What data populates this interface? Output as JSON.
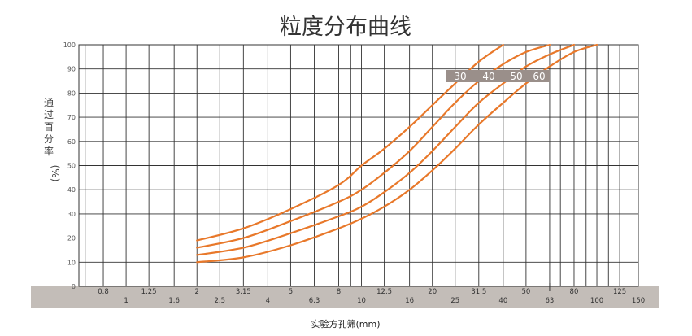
{
  "chart_data": {
    "type": "line",
    "title": "粒度分布曲线",
    "ylabel_chars": [
      "通",
      "过",
      "百",
      "分",
      "率"
    ],
    "ylabel_unit": "(%)",
    "xlabel": "实验方孔筛(mm)",
    "x_scale": "log",
    "xlim": [
      0.63,
      150
    ],
    "ylim": [
      0,
      100
    ],
    "grid": true,
    "yticks": [
      {
        "value": 0,
        "label": "0"
      },
      {
        "value": 10,
        "label": "10"
      },
      {
        "value": 20,
        "label": "20"
      },
      {
        "value": 30,
        "label": "30"
      },
      {
        "value": 40,
        "label": "40"
      },
      {
        "value": 50,
        "label": "50"
      },
      {
        "value": 60,
        "label": "60"
      },
      {
        "value": 70,
        "label": "70"
      },
      {
        "value": 80,
        "label": "80"
      },
      {
        "value": 90,
        "label": "90"
      },
      {
        "value": 100,
        "label": "100"
      }
    ],
    "xticks": [
      {
        "value": 0.8,
        "label": "0.8",
        "row": "upper"
      },
      {
        "value": 1,
        "label": "1",
        "row": "lower"
      },
      {
        "value": 1.25,
        "label": "1.25",
        "row": "upper"
      },
      {
        "value": 1.6,
        "label": "1.6",
        "row": "lower"
      },
      {
        "value": 2,
        "label": "2",
        "row": "upper"
      },
      {
        "value": 2.5,
        "label": "2.5",
        "row": "lower"
      },
      {
        "value": 3.15,
        "label": "3.15",
        "row": "upper"
      },
      {
        "value": 4,
        "label": "4",
        "row": "lower"
      },
      {
        "value": 5,
        "label": "5",
        "row": "upper"
      },
      {
        "value": 6.3,
        "label": "6.3",
        "row": "lower"
      },
      {
        "value": 8,
        "label": "8",
        "row": "upper"
      },
      {
        "value": 10,
        "label": "10",
        "row": "lower"
      },
      {
        "value": 12.5,
        "label": "12.5",
        "row": "upper"
      },
      {
        "value": 16,
        "label": "16",
        "row": "lower"
      },
      {
        "value": 20,
        "label": "20",
        "row": "upper"
      },
      {
        "value": 25,
        "label": "25",
        "row": "lower"
      },
      {
        "value": 31.5,
        "label": "31.5",
        "row": "upper"
      },
      {
        "value": 40,
        "label": "40",
        "row": "lower"
      },
      {
        "value": 50,
        "label": "50",
        "row": "upper"
      },
      {
        "value": 63,
        "label": "63",
        "row": "lower"
      },
      {
        "value": 80,
        "label": "80",
        "row": "upper"
      },
      {
        "value": 100,
        "label": "100",
        "row": "lower"
      },
      {
        "value": 125,
        "label": "125",
        "row": "upper"
      },
      {
        "value": 150,
        "label": "150",
        "row": "lower"
      }
    ],
    "gridlines_x": [
      0.67,
      0.8,
      1,
      1.25,
      1.6,
      2,
      2.5,
      3.15,
      4,
      5,
      6.3,
      8,
      9,
      10,
      12.5,
      16,
      20,
      25,
      31.5,
      40,
      50,
      63,
      70,
      80,
      90,
      100,
      112,
      125,
      150
    ],
    "series": [
      {
        "name": "30",
        "color": "#e8782a",
        "points": [
          [
            2,
            19
          ],
          [
            3.15,
            24
          ],
          [
            5,
            32
          ],
          [
            8,
            42
          ],
          [
            10,
            50
          ],
          [
            12.5,
            57
          ],
          [
            16,
            66
          ],
          [
            20,
            75
          ],
          [
            25,
            84
          ],
          [
            31.5,
            93
          ],
          [
            40,
            100
          ]
        ]
      },
      {
        "name": "40",
        "color": "#e8782a",
        "points": [
          [
            2,
            16
          ],
          [
            3.15,
            20
          ],
          [
            5,
            27
          ],
          [
            8,
            35
          ],
          [
            10,
            40
          ],
          [
            12.5,
            47
          ],
          [
            16,
            56
          ],
          [
            20,
            66
          ],
          [
            25,
            76
          ],
          [
            31.5,
            85
          ],
          [
            40,
            92
          ],
          [
            50,
            97
          ],
          [
            63,
            100
          ]
        ]
      },
      {
        "name": "50",
        "color": "#e8782a",
        "points": [
          [
            2,
            13
          ],
          [
            3.15,
            16
          ],
          [
            5,
            22
          ],
          [
            8,
            29
          ],
          [
            10,
            33
          ],
          [
            12.5,
            39
          ],
          [
            16,
            47
          ],
          [
            20,
            56
          ],
          [
            25,
            66
          ],
          [
            31.5,
            76
          ],
          [
            40,
            84
          ],
          [
            50,
            91
          ],
          [
            63,
            96
          ],
          [
            80,
            100
          ]
        ]
      },
      {
        "name": "60",
        "color": "#e8782a",
        "points": [
          [
            2,
            10
          ],
          [
            3.15,
            12
          ],
          [
            5,
            17
          ],
          [
            8,
            24
          ],
          [
            10,
            28
          ],
          [
            12.5,
            33
          ],
          [
            16,
            40
          ],
          [
            20,
            48
          ],
          [
            25,
            57
          ],
          [
            31.5,
            67
          ],
          [
            40,
            76
          ],
          [
            50,
            84
          ],
          [
            63,
            91
          ],
          [
            80,
            97
          ],
          [
            100,
            100
          ]
        ]
      }
    ],
    "curve_label_color": "#9a8f8a",
    "axis_band_color": "#c3bdb8"
  }
}
